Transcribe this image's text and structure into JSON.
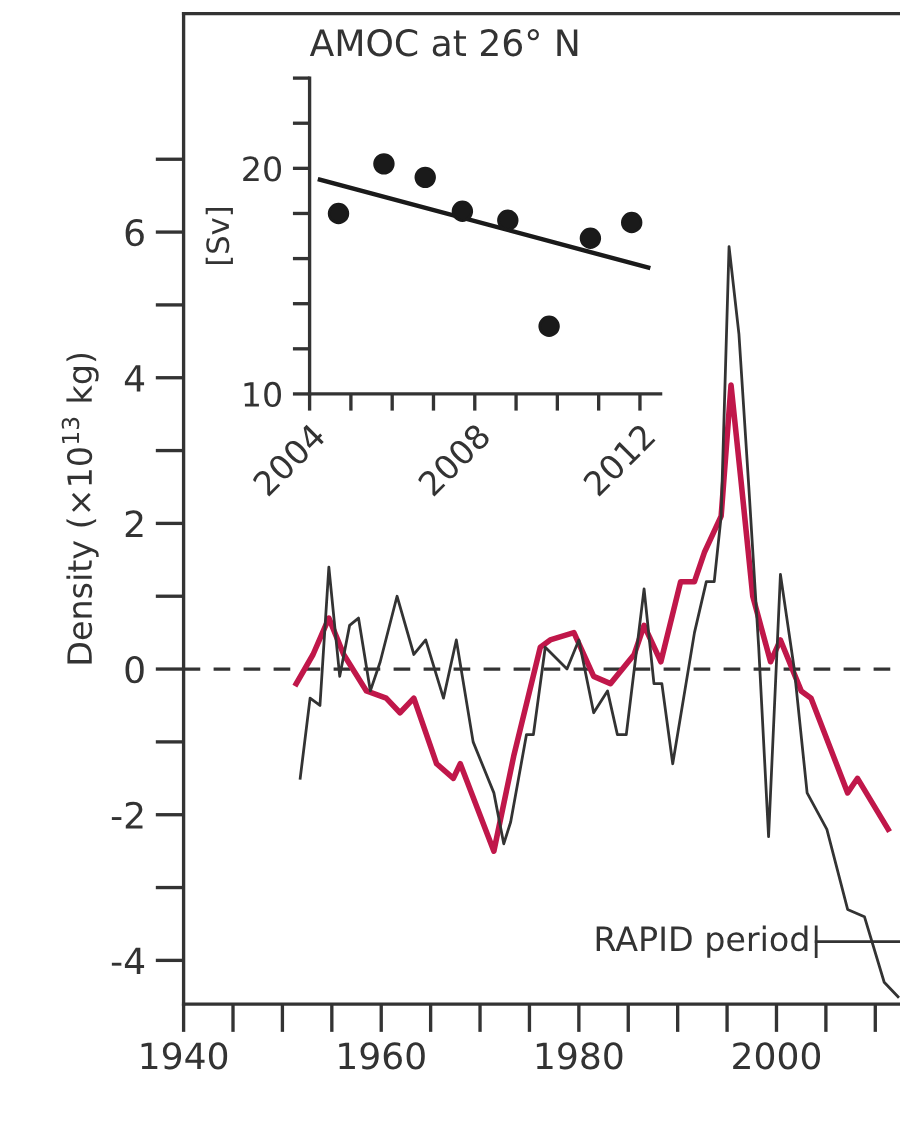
{
  "chart_data": [
    {
      "type": "line",
      "ylabel": "Density (×10$^{13}$ kg)",
      "xlim": [
        1940,
        2012.5
      ],
      "ylim": [
        -4.6,
        9
      ],
      "xticks": [
        1940,
        {
          "value": 1945,
          "label": null
        },
        {
          "value": 1950,
          "label": null
        },
        {
          "value": 1955,
          "label": null
        },
        1960,
        {
          "value": 1965,
          "label": null
        },
        {
          "value": 1970,
          "label": null
        },
        {
          "value": 1975,
          "label": null
        },
        1980,
        {
          "value": 1985,
          "label": null
        },
        {
          "value": 1990,
          "label": null
        },
        {
          "value": 1995,
          "label": null
        },
        2000,
        {
          "value": 2005,
          "label": null
        },
        {
          "value": 2010,
          "label": null
        }
      ],
      "yticks": [
        -4,
        {
          "value": -3,
          "label": null
        },
        -2,
        {
          "value": -1,
          "label": null
        },
        0,
        {
          "value": 1,
          "label": null
        },
        2,
        {
          "value": 3,
          "label": null
        },
        4,
        {
          "value": 5,
          "label": null
        },
        6,
        {
          "value": 7,
          "label": null
        }
      ],
      "grid": false,
      "legend": false,
      "ref_lines": [
        {
          "axis": "y",
          "value": 0,
          "color": "#333333",
          "line_style": "dashed"
        }
      ],
      "annotations": [
        "RAPID period"
      ],
      "series": [
        {
          "color": "#333333",
          "x": [
            1951.8,
            1952.8,
            1953.8,
            1954.7,
            1955.8,
            1956.8,
            1957.7,
            1958.9,
            1959.9,
            1961.6,
            1963.3,
            1964.5,
            1966.3,
            1967.6,
            1969.3,
            1971.4,
            1972.4,
            1973.1,
            1974.7,
            1975.4,
            1976.6,
            1978.8,
            1980,
            1981.5,
            1982.9,
            1983.9,
            1984.8,
            1986.6,
            1987.6,
            1988.4,
            1989.5,
            1991.7,
            1992.9,
            1993.7,
            1994.4,
            1995.2,
            1996.2,
            1997.2,
            1998.2,
            1999.2,
            2000.4,
            2001.8,
            2003.1,
            2005.1,
            2007.2,
            2008.9,
            2010.9,
            2012.3
          ],
          "values": [
            -1.5,
            -0.4,
            -0.5,
            1.4,
            -0.1,
            0.6,
            0.7,
            -0.3,
            0.1,
            1.0,
            0.2,
            0.4,
            -0.4,
            0.4,
            -1.0,
            -1.7,
            -2.4,
            -2.1,
            -0.9,
            -0.9,
            0.3,
            0.0,
            0.4,
            -0.6,
            -0.3,
            -0.9,
            -0.9,
            1.1,
            -0.2,
            -0.2,
            -1.3,
            0.5,
            1.2,
            1.2,
            2.1,
            5.8,
            4.6,
            2.5,
            0.3,
            -2.3,
            1.3,
            0.0,
            -1.7,
            -2.2,
            -3.3,
            -3.4,
            -4.3,
            -4.5
          ]
        },
        {
          "color": "#c0174a",
          "x": [
            1951.4,
            1953.1,
            1954.7,
            1956.2,
            1958.5,
            1960.5,
            1961.9,
            1963.3,
            1965.6,
            1967.3,
            1968,
            1971.4,
            1973.4,
            1976.1,
            1977.1,
            1979.5,
            1981.5,
            1983.2,
            1985.6,
            1986.6,
            1988.3,
            1990.3,
            1991.7,
            1992.7,
            1994.4,
            1995.4,
            1996.4,
            1997.6,
            1999.4,
            2000.4,
            2002.5,
            2003.5,
            2007.2,
            2008.2,
            2011.3
          ],
          "values": [
            -0.2,
            0.2,
            0.7,
            0.2,
            -0.3,
            -0.4,
            -0.6,
            -0.4,
            -1.3,
            -1.5,
            -1.3,
            -2.5,
            -1.2,
            0.3,
            0.4,
            0.5,
            -0.1,
            -0.2,
            0.2,
            0.6,
            0.1,
            1.2,
            1.2,
            1.6,
            2.1,
            3.9,
            2.6,
            1.0,
            0.1,
            0.4,
            -0.3,
            -0.4,
            -1.7,
            -1.5,
            -2.2
          ]
        }
      ]
    },
    {
      "type": "scatter",
      "title": "AMOC at 26° N",
      "ylabel": "[Sv]",
      "xlim": [
        2004,
        2012.5
      ],
      "ylim": [
        10,
        24
      ],
      "xticks": [
        2004,
        {
          "value": 2005,
          "label": null
        },
        {
          "value": 2006,
          "label": null
        },
        {
          "value": 2007,
          "label": null
        },
        2008,
        {
          "value": 2009,
          "label": null
        },
        {
          "value": 2010,
          "label": null
        },
        {
          "value": 2011,
          "label": null
        },
        2012
      ],
      "yticks": [
        10,
        {
          "value": 12,
          "label": null
        },
        {
          "value": 14,
          "label": null
        },
        {
          "value": 16,
          "label": null
        },
        {
          "value": 18,
          "label": null
        },
        20,
        {
          "value": 22,
          "label": null
        },
        {
          "value": 24,
          "label": null
        }
      ],
      "grid": false,
      "legend": false,
      "series": [
        {
          "color": "#1a1a1a",
          "marker": "circle",
          "x": [
            2004.7,
            2005.8,
            2006.8,
            2007.7,
            2008.8,
            2009.8,
            2010.8,
            2011.8
          ],
          "values": [
            18.0,
            20.2,
            19.6,
            18.1,
            17.7,
            13.0,
            16.9,
            17.6
          ]
        },
        {
          "type": "line",
          "color": "#1a1a1a",
          "x": [
            2004.25,
            2012.2
          ],
          "values": [
            19.5,
            15.6
          ]
        }
      ]
    }
  ]
}
